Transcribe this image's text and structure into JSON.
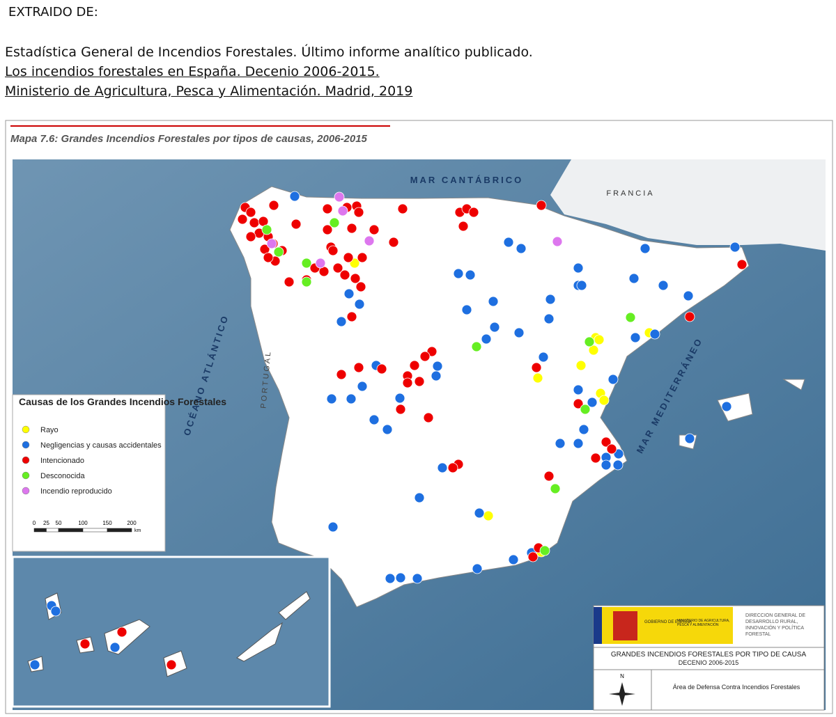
{
  "header": {
    "label": "EXTRAIDO DE:",
    "source": [
      "Estadística General de Incendios Forestales. Último informe analítico publicado.",
      "Los incendios forestales en España. Decenio 2006-2015.",
      "Ministerio de Agricultura, Pesca y Alimentación. Madrid, 2019"
    ]
  },
  "map": {
    "title": "Mapa 7.6: Grandes Incendios Forestales por tipos de causas, 2006-2015",
    "places": [
      "MAR CANTÁBRICO",
      "FRANCIA",
      "OCÉANO ATLÁNTICO",
      "PORTUGAL",
      "MAR MEDITERRÁNEO"
    ],
    "legend": {
      "title": "Causas de los Grandes Incendios Forestales",
      "items": [
        {
          "label": "Rayo",
          "color": "#ffff00"
        },
        {
          "label": "Negligencias y causas accidentales",
          "color": "#1e6fe0"
        },
        {
          "label": "Intencionado",
          "color": "#ee0000"
        },
        {
          "label": "Desconocida",
          "color": "#66ee22"
        },
        {
          "label": "Incendio reproducido",
          "color": "#dd77ee"
        }
      ],
      "scale": [
        0,
        25,
        50,
        100,
        150,
        200
      ],
      "scale_unit": "km"
    },
    "titleblock": {
      "gov": "GOBIERNO DE ESPAÑA",
      "ministry": "MINISTERIO DE AGRICULTURA, PESCA Y ALIMENTACIÓN",
      "directorate": "DIRECCIÓN GENERAL DE DESARROLLO RURAL, INNOVACIÓN Y POLÍTICA FORESTAL",
      "heading": "GRANDES INCENDIOS FORESTALES POR TIPO DE CAUSA",
      "period": "DECENIO 2006-2015",
      "north": "N",
      "area": "Área de Defensa Contra Incendios Forestales"
    }
  }
}
